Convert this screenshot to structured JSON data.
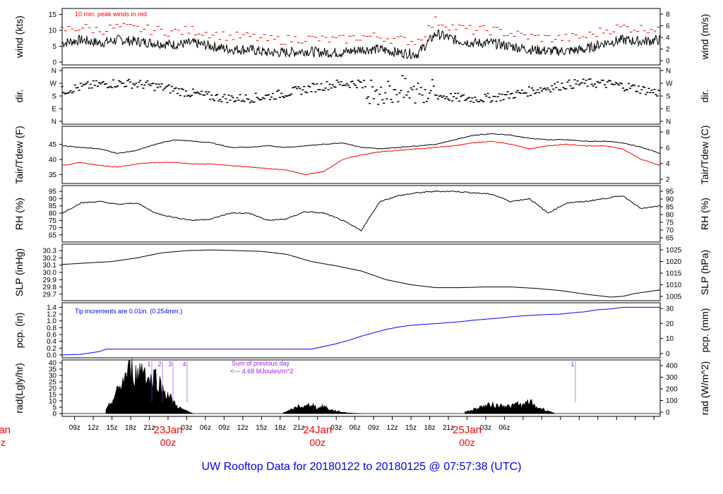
{
  "figure_title": "UW Rooftop Data for 20180122  to  20180125 @ 07:57:38  (UTC)",
  "colors": {
    "black": "#000000",
    "red": "#ff0000",
    "blue": "#0000ff",
    "purple": "#a020f0"
  },
  "x_axis": {
    "hour_ticks": [
      "09z",
      "12z",
      "15z",
      "18z",
      "21z",
      "03z",
      "06z",
      "09z",
      "12z",
      "15z",
      "18z",
      "21z",
      "03z",
      "06z",
      "09z",
      "12z",
      "15z",
      "18z",
      "21z",
      "03z",
      "06z"
    ],
    "day_labels": [
      {
        "day": "23Jan",
        "sub": "00z"
      },
      {
        "day": "24Jan",
        "sub": "00z"
      },
      {
        "day": "25Jan",
        "sub": "00z"
      }
    ],
    "left_clipped_day": "Jan",
    "left_clipped_sub": "z"
  },
  "chart_data": [
    {
      "type": "line",
      "panel": "wind",
      "ylabel_left": "wind (kts)",
      "ylabel_right": "wind (m/s)",
      "left_ticks": [
        "0",
        "5",
        "10",
        "15"
      ],
      "right_ticks": [
        "0",
        "2",
        "4",
        "6",
        "8"
      ],
      "ylim": [
        0,
        16
      ],
      "annotation": "10 min. peak winds in red",
      "series": [
        {
          "color": "#000000",
          "x_hours": [
            0,
            3,
            6,
            9,
            12,
            15,
            18,
            21,
            24,
            27,
            30,
            33,
            36,
            39,
            42,
            45,
            48,
            51,
            54,
            57,
            60,
            63,
            66,
            69,
            72,
            75,
            78,
            81,
            84,
            87,
            90,
            93,
            96
          ],
          "values": [
            6,
            7,
            6,
            7,
            6.5,
            6,
            5.5,
            6,
            5,
            4,
            4,
            3,
            3,
            3.5,
            3,
            3,
            4,
            4,
            3,
            2.5,
            9,
            7,
            6,
            6,
            5,
            4,
            3.5,
            3.5,
            4,
            6,
            7,
            6.5,
            7
          ]
        }
      ]
    },
    {
      "type": "scatter",
      "panel": "dir",
      "ylabel_left": "dir.",
      "ylabel_right": "dir.",
      "ticks": [
        "N",
        "E",
        "S",
        "W",
        "N"
      ]
    },
    {
      "type": "line",
      "panel": "temp",
      "ylabel_left": "Tair/Tdew (F)",
      "ylabel_right": "Tair/Tdew (C)",
      "left_ticks": [
        "35",
        "40",
        "45"
      ],
      "right_ticks": [
        "2",
        "4",
        "6",
        "8"
      ],
      "ylim": [
        33,
        50
      ],
      "series": [
        {
          "name": "Tair",
          "color": "#000000",
          "x_hours": [
            0,
            3,
            6,
            9,
            12,
            15,
            18,
            21,
            24,
            27,
            30,
            33,
            36,
            39,
            42,
            45,
            48,
            51,
            54,
            57,
            60,
            63,
            66,
            69,
            72,
            75,
            78,
            81,
            84,
            87,
            90,
            93,
            96
          ],
          "values": [
            44.5,
            44,
            43.5,
            42,
            43,
            45,
            46.5,
            46,
            45.5,
            44,
            44,
            44.5,
            44,
            44.5,
            45,
            45.5,
            44,
            43.5,
            44,
            44.5,
            45,
            46.5,
            48,
            48.5,
            48,
            47,
            46.5,
            46.5,
            46,
            46,
            45.5,
            44,
            42
          ]
        },
        {
          "name": "Tdew",
          "color": "#ff0000",
          "x_hours": [
            0,
            3,
            6,
            9,
            12,
            15,
            18,
            21,
            24,
            27,
            30,
            33,
            36,
            39,
            42,
            45,
            48,
            51,
            54,
            57,
            60,
            63,
            66,
            69,
            72,
            75,
            78,
            81,
            84,
            87,
            90,
            93,
            96
          ],
          "values": [
            38,
            39,
            38,
            37.5,
            38.5,
            39,
            39,
            38.5,
            38.5,
            38,
            37.5,
            37,
            36.5,
            35,
            36,
            40,
            41.5,
            42.5,
            43,
            43.5,
            44,
            44.5,
            45.5,
            46,
            45,
            43.5,
            44.5,
            45,
            44.5,
            44.5,
            43.5,
            40,
            38
          ]
        }
      ]
    },
    {
      "type": "line",
      "panel": "rh",
      "ylabel_left": "RH (%)",
      "ylabel_right": "RH (%)",
      "left_ticks": [
        "65",
        "70",
        "75",
        "80",
        "85",
        "90",
        "95"
      ],
      "right_ticks": [
        "65",
        "70",
        "75",
        "80",
        "85",
        "90",
        "95"
      ],
      "ylim": [
        62,
        97
      ],
      "series": [
        {
          "color": "#000000",
          "x_hours": [
            0,
            3,
            6,
            9,
            12,
            15,
            18,
            21,
            24,
            27,
            30,
            33,
            36,
            39,
            42,
            45,
            48,
            51,
            54,
            57,
            60,
            63,
            66,
            69,
            72,
            75,
            78,
            81,
            84,
            87,
            90,
            93,
            96
          ],
          "values": [
            80,
            87,
            88,
            86,
            87,
            80,
            77,
            75,
            76,
            80,
            80,
            75,
            76,
            81,
            80,
            75,
            68,
            88,
            92,
            94,
            95,
            95,
            94,
            93,
            88,
            90,
            80,
            87,
            88,
            90,
            92,
            83,
            85
          ]
        }
      ]
    },
    {
      "type": "line",
      "panel": "slp",
      "ylabel_left": "SLP (inHg)",
      "ylabel_right": "SLP (hPa)",
      "left_ticks": [
        "29.7",
        "29.8",
        "29.9",
        "30.0",
        "30.1",
        "30.2",
        "30.3"
      ],
      "right_ticks": [
        "1005",
        "1010",
        "1015",
        "1020",
        "1025"
      ],
      "ylim": [
        29.65,
        30.35
      ],
      "series": [
        {
          "color": "#000000",
          "x_hours": [
            0,
            4,
            8,
            12,
            16,
            20,
            24,
            28,
            32,
            36,
            40,
            44,
            48,
            52,
            56,
            60,
            64,
            68,
            72,
            76,
            80,
            84,
            88,
            90,
            92,
            96
          ],
          "values": [
            30.11,
            30.13,
            30.15,
            30.2,
            30.27,
            30.3,
            30.31,
            30.3,
            30.29,
            30.25,
            30.15,
            30.09,
            30.02,
            29.9,
            29.83,
            29.79,
            29.79,
            29.8,
            29.8,
            29.78,
            29.75,
            29.7,
            29.66,
            29.67,
            29.71,
            29.76
          ]
        }
      ]
    },
    {
      "type": "line",
      "panel": "precip",
      "ylabel_left": "pcp. (in)",
      "ylabel_right": "pcp. (mm)",
      "left_ticks": [
        "0.0",
        "0.2",
        "0.4",
        "0.6",
        "0.8",
        "1.0",
        "1.2",
        "1.4"
      ],
      "right_ticks": [
        "0",
        "10",
        "20",
        "30"
      ],
      "ylim": [
        0,
        1.45
      ],
      "annotation": "Tip increments are 0.01in. (0.254mm.)",
      "series": [
        {
          "color": "#0000ff",
          "x_hours": [
            0,
            3,
            6,
            7,
            40,
            42,
            44,
            46,
            48,
            50,
            52,
            54,
            56,
            58,
            60,
            62,
            64,
            66,
            68,
            70,
            72,
            74,
            76,
            78,
            80,
            82,
            84,
            86,
            88,
            90,
            96
          ],
          "values": [
            0,
            0.02,
            0.1,
            0.17,
            0.17,
            0.25,
            0.33,
            0.43,
            0.55,
            0.65,
            0.75,
            0.82,
            0.87,
            0.9,
            0.92,
            0.95,
            0.98,
            1.02,
            1.05,
            1.08,
            1.12,
            1.15,
            1.17,
            1.19,
            1.2,
            1.24,
            1.27,
            1.33,
            1.35,
            1.4,
            1.4
          ]
        }
      ]
    },
    {
      "type": "area",
      "panel": "radiation",
      "ylabel_left": "rad(Lgly/hr)",
      "ylabel_right": "rad (W/m^2)",
      "left_ticks": [
        "0",
        "5",
        "10",
        "15",
        "20",
        "25",
        "30",
        "35",
        "40"
      ],
      "right_ticks": [
        "0",
        "100",
        "200",
        "300",
        "400"
      ],
      "ylim": [
        0,
        40
      ],
      "flags": [
        "1",
        "2",
        "3",
        "4",
        "1"
      ],
      "annotation_line1": "Sum of previous day",
      "annotation_line2": "<--- 4.68 MJoules/m^2",
      "series": [
        {
          "color": "#000000",
          "x_hours": [
            7,
            8,
            9,
            10,
            11,
            12,
            13,
            14,
            15,
            16,
            17,
            18,
            19,
            20,
            21,
            35.5,
            37,
            38,
            39,
            40,
            41,
            42,
            43,
            44,
            45,
            46,
            47,
            48,
            64.5,
            66,
            67,
            68,
            69,
            70,
            71,
            72,
            73,
            74,
            75,
            76,
            77,
            78,
            79
          ],
          "values": [
            2,
            10,
            18,
            28,
            35,
            30,
            38,
            25,
            30,
            20,
            15,
            8,
            4,
            2,
            0,
            1,
            3,
            6,
            5,
            8,
            4,
            6,
            3,
            2,
            1,
            0.5,
            0.2,
            0,
            1,
            3,
            5,
            6,
            7,
            6,
            7,
            5,
            8,
            6,
            10,
            5,
            4,
            2,
            0.5
          ]
        }
      ]
    }
  ]
}
